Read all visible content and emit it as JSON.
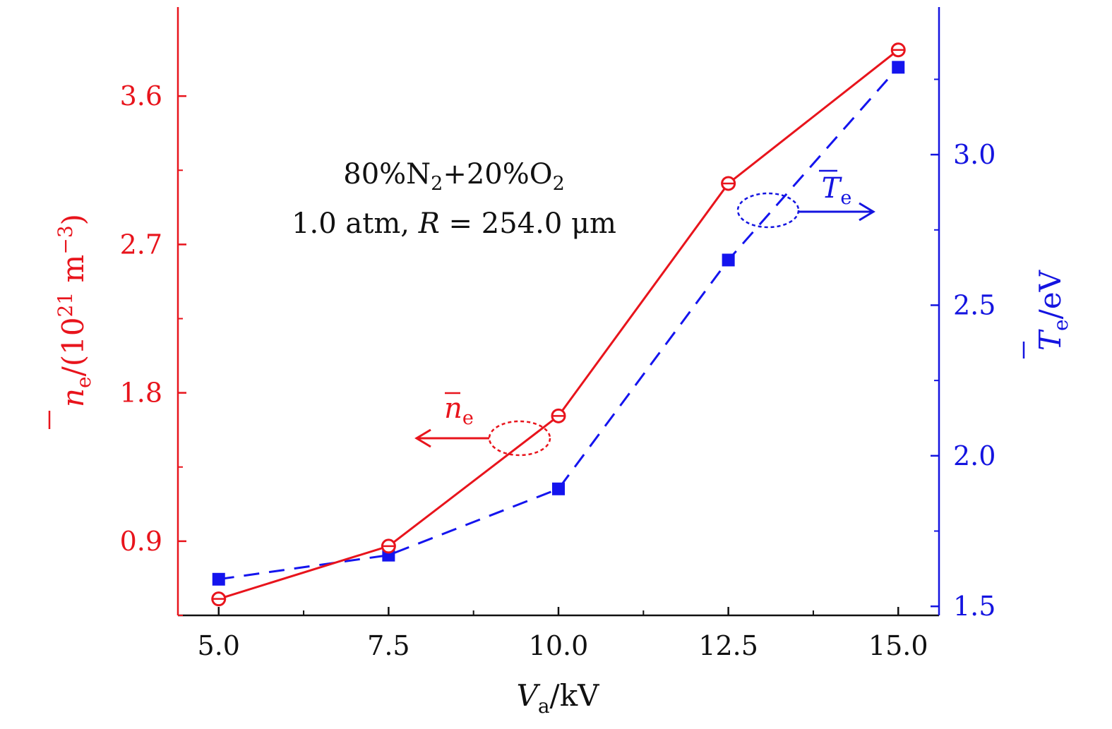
{
  "chart_data": {
    "type": "line",
    "title": "",
    "x": [
      5.0,
      7.5,
      10.0,
      12.5,
      15.0
    ],
    "xlabel": {
      "main": "V",
      "sub": "a",
      "rest": "/kV"
    },
    "xlim": [
      4.4,
      15.6
    ],
    "xticks": [
      "5.0",
      "7.5",
      "10.0",
      "12.5",
      "15.0"
    ],
    "y_left": {
      "label": {
        "main": "n",
        "sub": "e",
        "rest": "/(10",
        "sup": "21",
        "tail": " m",
        "sup2": "−3",
        "close": ")"
      },
      "lim": [
        0.45,
        4.14
      ],
      "ticks": [
        "0.9",
        "1.8",
        "2.7",
        "3.6"
      ],
      "tick_values": [
        0.9,
        1.8,
        2.7,
        3.6
      ],
      "minor_ticks": [
        0.45,
        1.35,
        2.25,
        3.15
      ]
    },
    "y_right": {
      "label": {
        "main": "T",
        "sub": "e",
        "rest": "/eV"
      },
      "lim": [
        1.47,
        3.49
      ],
      "ticks": [
        "1.5",
        "2.0",
        "2.5",
        "3.0"
      ],
      "tick_values": [
        1.5,
        2.0,
        2.5,
        3.0
      ],
      "minor_ticks": [
        1.75,
        2.25,
        2.75,
        3.25
      ]
    },
    "series": [
      {
        "name": "n̄e",
        "axis": "left",
        "color": "#e8141c",
        "marker": "circle-bar",
        "line": "solid",
        "values": [
          0.55,
          0.87,
          1.66,
          3.07,
          3.88
        ]
      },
      {
        "name": "T̄e",
        "axis": "right",
        "color": "#1414ee",
        "marker": "square",
        "line": "dashed",
        "values": [
          1.59,
          1.67,
          1.89,
          2.65,
          3.29
        ]
      }
    ],
    "annotations": {
      "gas_prefix": "80%N",
      "gas_sub1": "2",
      "gas_mid": "+20%O",
      "gas_sub2": "2",
      "cond_prefix": "1.0 atm, ",
      "cond_var": "R",
      "cond_suffix": " = 254.0 μm",
      "ne_label_main": "n",
      "ne_label_sub": "e",
      "te_label_main": "T",
      "te_label_sub": "e"
    },
    "grid": false,
    "legend": "inline annotations with arrows"
  }
}
